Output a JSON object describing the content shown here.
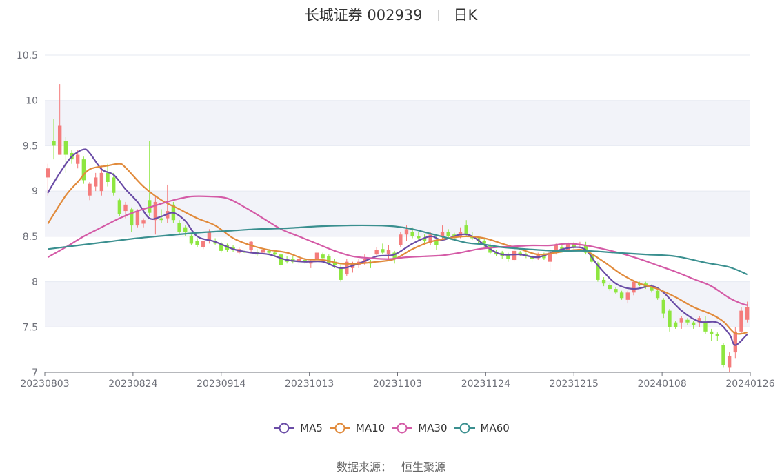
{
  "header": {
    "stock": "长城证券 002939",
    "period": "日K"
  },
  "source": {
    "label": "数据来源：",
    "value": "恒生聚源"
  },
  "chart_data": {
    "type": "candlestick",
    "title": "长城证券 002939 日K",
    "ylim": [
      7,
      10.5
    ],
    "yticks": [
      7,
      7.5,
      8,
      8.5,
      9,
      9.5,
      10,
      10.5
    ],
    "xtick_labels": [
      "20230803",
      "20230824",
      "20230914",
      "20231013",
      "20231103",
      "20231124",
      "20231215",
      "20240108",
      "20240126"
    ],
    "n_days": 118,
    "colors": {
      "up": "#f47c7c",
      "down": "#8ee640",
      "grid": "#e6e9f2",
      "band": "#f2f3f9",
      "axis": "#6e7079"
    },
    "candles": [
      [
        9.15,
        9.3,
        8.95,
        9.25
      ],
      [
        9.55,
        9.8,
        9.35,
        9.5
      ],
      [
        9.4,
        10.18,
        9.4,
        9.72
      ],
      [
        9.55,
        9.6,
        9.2,
        9.4
      ],
      [
        9.42,
        9.45,
        9.3,
        9.35
      ],
      [
        9.3,
        9.45,
        9.25,
        9.4
      ],
      [
        9.35,
        9.38,
        9.08,
        9.12
      ],
      [
        8.95,
        9.1,
        8.9,
        9.08
      ],
      [
        9.05,
        9.2,
        9.0,
        9.15
      ],
      [
        9.0,
        9.28,
        8.95,
        9.2
      ],
      [
        9.2,
        9.3,
        9.05,
        9.1
      ],
      [
        9.15,
        9.2,
        8.95,
        8.98
      ],
      [
        8.9,
        8.92,
        8.72,
        8.75
      ],
      [
        8.78,
        8.88,
        8.7,
        8.85
      ],
      [
        8.8,
        8.82,
        8.55,
        8.62
      ],
      [
        8.62,
        8.8,
        8.6,
        8.78
      ],
      [
        8.64,
        8.7,
        8.6,
        8.68
      ],
      [
        8.9,
        9.55,
        8.72,
        8.76
      ],
      [
        8.68,
        8.95,
        8.52,
        8.88
      ],
      [
        8.7,
        8.8,
        8.65,
        8.68
      ],
      [
        8.7,
        9.07,
        8.65,
        8.78
      ],
      [
        8.85,
        8.88,
        8.65,
        8.68
      ],
      [
        8.65,
        8.68,
        8.52,
        8.55
      ],
      [
        8.6,
        8.62,
        8.5,
        8.55
      ],
      [
        8.5,
        8.52,
        8.4,
        8.42
      ],
      [
        8.45,
        8.48,
        8.38,
        8.4
      ],
      [
        8.38,
        8.42,
        8.36,
        8.45
      ],
      [
        8.45,
        8.58,
        8.42,
        8.55
      ],
      [
        8.45,
        8.48,
        8.4,
        8.42
      ],
      [
        8.42,
        8.44,
        8.32,
        8.34
      ],
      [
        8.4,
        8.42,
        8.33,
        8.35
      ],
      [
        8.38,
        8.4,
        8.33,
        8.35
      ],
      [
        8.32,
        8.38,
        8.3,
        8.36
      ],
      [
        8.33,
        8.35,
        8.3,
        8.32
      ],
      [
        8.35,
        8.45,
        8.33,
        8.44
      ],
      [
        8.33,
        8.36,
        8.28,
        8.3
      ],
      [
        8.32,
        8.38,
        8.3,
        8.35
      ],
      [
        8.34,
        8.36,
        8.3,
        8.32
      ],
      [
        8.32,
        8.34,
        8.28,
        8.3
      ],
      [
        8.3,
        8.33,
        8.15,
        8.18
      ],
      [
        8.25,
        8.28,
        8.2,
        8.22
      ],
      [
        8.25,
        8.28,
        8.2,
        8.22
      ],
      [
        8.22,
        8.28,
        8.18,
        8.25
      ],
      [
        8.24,
        8.26,
        8.2,
        8.22
      ],
      [
        8.2,
        8.25,
        8.15,
        8.23
      ],
      [
        8.25,
        8.35,
        8.22,
        8.32
      ],
      [
        8.3,
        8.32,
        8.24,
        8.26
      ],
      [
        8.28,
        8.3,
        8.18,
        8.2
      ],
      [
        8.22,
        8.25,
        8.15,
        8.18
      ],
      [
        8.15,
        8.2,
        8.0,
        8.02
      ],
      [
        8.08,
        8.25,
        8.06,
        8.22
      ],
      [
        8.15,
        8.22,
        8.1,
        8.2
      ],
      [
        8.18,
        8.25,
        8.15,
        8.22
      ],
      [
        8.2,
        8.3,
        8.18,
        8.25
      ],
      [
        8.22,
        8.24,
        8.15,
        8.2
      ],
      [
        8.3,
        8.38,
        8.28,
        8.35
      ],
      [
        8.36,
        8.42,
        8.3,
        8.32
      ],
      [
        8.3,
        8.4,
        8.25,
        8.35
      ],
      [
        8.32,
        8.34,
        8.2,
        8.25
      ],
      [
        8.4,
        8.55,
        8.38,
        8.52
      ],
      [
        8.52,
        8.62,
        8.45,
        8.58
      ],
      [
        8.55,
        8.6,
        8.48,
        8.5
      ],
      [
        8.5,
        8.55,
        8.45,
        8.48
      ],
      [
        8.48,
        8.52,
        8.4,
        8.45
      ],
      [
        8.43,
        8.55,
        8.4,
        8.52
      ],
      [
        8.45,
        8.5,
        8.35,
        8.4
      ],
      [
        8.5,
        8.62,
        8.45,
        8.55
      ],
      [
        8.55,
        8.58,
        8.48,
        8.5
      ],
      [
        8.52,
        8.54,
        8.45,
        8.48
      ],
      [
        8.5,
        8.6,
        8.48,
        8.55
      ],
      [
        8.62,
        8.68,
        8.5,
        8.52
      ],
      [
        8.5,
        8.55,
        8.46,
        8.48
      ],
      [
        8.48,
        8.5,
        8.42,
        8.45
      ],
      [
        8.45,
        8.48,
        8.38,
        8.42
      ],
      [
        8.4,
        8.42,
        8.3,
        8.32
      ],
      [
        8.32,
        8.35,
        8.28,
        8.3
      ],
      [
        8.32,
        8.34,
        8.25,
        8.28
      ],
      [
        8.3,
        8.32,
        8.22,
        8.25
      ],
      [
        8.24,
        8.36,
        8.22,
        8.34
      ],
      [
        8.32,
        8.34,
        8.28,
        8.3
      ],
      [
        8.3,
        8.32,
        8.26,
        8.28
      ],
      [
        8.28,
        8.3,
        8.22,
        8.25
      ],
      [
        8.26,
        8.32,
        8.24,
        8.3
      ],
      [
        8.3,
        8.32,
        8.24,
        8.26
      ],
      [
        8.22,
        8.35,
        8.12,
        8.32
      ],
      [
        8.33,
        8.42,
        8.3,
        8.4
      ],
      [
        8.38,
        8.4,
        8.32,
        8.35
      ],
      [
        8.35,
        8.44,
        8.33,
        8.42
      ],
      [
        8.42,
        8.44,
        8.35,
        8.38
      ],
      [
        8.4,
        8.44,
        8.38,
        8.41
      ],
      [
        8.4,
        8.44,
        8.3,
        8.32
      ],
      [
        8.3,
        8.32,
        8.2,
        8.22
      ],
      [
        8.2,
        8.22,
        8.0,
        8.02
      ],
      [
        8.02,
        8.05,
        7.95,
        7.98
      ],
      [
        7.96,
        7.98,
        7.9,
        7.92
      ],
      [
        7.92,
        7.94,
        7.86,
        7.88
      ],
      [
        7.88,
        7.9,
        7.8,
        7.82
      ],
      [
        7.8,
        7.9,
        7.76,
        7.88
      ],
      [
        7.88,
        8.02,
        7.85,
        8.0
      ],
      [
        7.98,
        8.0,
        7.95,
        7.96
      ],
      [
        7.98,
        8.0,
        7.92,
        7.94
      ],
      [
        7.95,
        7.97,
        7.88,
        7.9
      ],
      [
        7.9,
        7.92,
        7.8,
        7.82
      ],
      [
        7.8,
        7.82,
        7.6,
        7.65
      ],
      [
        7.68,
        7.7,
        7.45,
        7.5
      ],
      [
        7.55,
        7.57,
        7.48,
        7.5
      ],
      [
        7.55,
        7.62,
        7.48,
        7.6
      ],
      [
        7.58,
        7.6,
        7.52,
        7.55
      ],
      [
        7.55,
        7.57,
        7.48,
        7.52
      ],
      [
        7.55,
        7.62,
        7.5,
        7.6
      ],
      [
        7.56,
        7.62,
        7.42,
        7.45
      ],
      [
        7.45,
        7.48,
        7.35,
        7.42
      ],
      [
        7.42,
        7.44,
        7.35,
        7.4
      ],
      [
        7.3,
        7.32,
        7.05,
        7.08
      ],
      [
        7.05,
        7.22,
        7.0,
        7.18
      ],
      [
        7.22,
        7.5,
        7.15,
        7.45
      ],
      [
        7.45,
        7.72,
        7.42,
        7.68
      ],
      [
        7.58,
        7.78,
        7.55,
        7.72
      ]
    ],
    "ma": [
      {
        "name": "MA5",
        "color": "#6a4ca6",
        "anchors": [
          [
            0,
            8.98
          ],
          [
            2,
            9.2
          ],
          [
            4,
            9.38
          ],
          [
            6,
            9.46
          ],
          [
            7,
            9.42
          ],
          [
            9,
            9.24
          ],
          [
            11,
            9.18
          ],
          [
            13,
            9.02
          ],
          [
            15,
            8.88
          ],
          [
            17,
            8.7
          ],
          [
            19,
            8.72
          ],
          [
            21,
            8.76
          ],
          [
            23,
            8.67
          ],
          [
            25,
            8.5
          ],
          [
            28,
            8.44
          ],
          [
            31,
            8.36
          ],
          [
            34,
            8.32
          ],
          [
            37,
            8.3
          ],
          [
            40,
            8.24
          ],
          [
            43,
            8.22
          ],
          [
            46,
            8.22
          ],
          [
            49,
            8.15
          ],
          [
            52,
            8.2
          ],
          [
            55,
            8.28
          ],
          [
            58,
            8.3
          ],
          [
            61,
            8.42
          ],
          [
            64,
            8.5
          ],
          [
            66,
            8.46
          ],
          [
            69,
            8.52
          ],
          [
            71,
            8.5
          ],
          [
            74,
            8.36
          ],
          [
            76,
            8.3
          ],
          [
            79,
            8.3
          ],
          [
            82,
            8.27
          ],
          [
            85,
            8.34
          ],
          [
            88,
            8.38
          ],
          [
            90,
            8.35
          ],
          [
            92,
            8.18
          ],
          [
            95,
            7.98
          ],
          [
            98,
            7.92
          ],
          [
            101,
            7.95
          ],
          [
            103,
            7.88
          ],
          [
            106,
            7.68
          ],
          [
            109,
            7.56
          ],
          [
            112,
            7.55
          ],
          [
            114,
            7.42
          ],
          [
            115,
            7.3
          ],
          [
            117,
            7.42
          ]
        ]
      },
      {
        "name": "MA10",
        "color": "#e18a3b",
        "anchors": [
          [
            0,
            8.64
          ],
          [
            3,
            8.95
          ],
          [
            5,
            9.1
          ],
          [
            7,
            9.24
          ],
          [
            10,
            9.28
          ],
          [
            12,
            9.3
          ],
          [
            13,
            9.26
          ],
          [
            16,
            9.05
          ],
          [
            19,
            8.9
          ],
          [
            22,
            8.8
          ],
          [
            25,
            8.7
          ],
          [
            28,
            8.62
          ],
          [
            31,
            8.48
          ],
          [
            34,
            8.4
          ],
          [
            37,
            8.35
          ],
          [
            40,
            8.32
          ],
          [
            43,
            8.25
          ],
          [
            46,
            8.24
          ],
          [
            49,
            8.2
          ],
          [
            52,
            8.2
          ],
          [
            55,
            8.22
          ],
          [
            58,
            8.25
          ],
          [
            61,
            8.36
          ],
          [
            64,
            8.44
          ],
          [
            67,
            8.48
          ],
          [
            70,
            8.5
          ],
          [
            73,
            8.48
          ],
          [
            76,
            8.42
          ],
          [
            79,
            8.36
          ],
          [
            82,
            8.3
          ],
          [
            85,
            8.32
          ],
          [
            88,
            8.35
          ],
          [
            90,
            8.34
          ],
          [
            93,
            8.22
          ],
          [
            96,
            8.08
          ],
          [
            99,
            7.98
          ],
          [
            102,
            7.92
          ],
          [
            105,
            7.83
          ],
          [
            108,
            7.72
          ],
          [
            111,
            7.64
          ],
          [
            113,
            7.56
          ],
          [
            115,
            7.43
          ],
          [
            117,
            7.44
          ]
        ]
      },
      {
        "name": "MA30",
        "color": "#d45aa6",
        "anchors": [
          [
            0,
            8.27
          ],
          [
            3,
            8.38
          ],
          [
            6,
            8.5
          ],
          [
            9,
            8.6
          ],
          [
            12,
            8.7
          ],
          [
            15,
            8.78
          ],
          [
            18,
            8.84
          ],
          [
            21,
            8.9
          ],
          [
            24,
            8.94
          ],
          [
            27,
            8.94
          ],
          [
            30,
            8.92
          ],
          [
            33,
            8.82
          ],
          [
            36,
            8.7
          ],
          [
            39,
            8.58
          ],
          [
            42,
            8.5
          ],
          [
            45,
            8.42
          ],
          [
            48,
            8.34
          ],
          [
            51,
            8.28
          ],
          [
            54,
            8.26
          ],
          [
            57,
            8.25
          ],
          [
            60,
            8.27
          ],
          [
            63,
            8.28
          ],
          [
            66,
            8.29
          ],
          [
            69,
            8.32
          ],
          [
            72,
            8.36
          ],
          [
            75,
            8.38
          ],
          [
            78,
            8.39
          ],
          [
            81,
            8.4
          ],
          [
            84,
            8.4
          ],
          [
            87,
            8.42
          ],
          [
            90,
            8.4
          ],
          [
            93,
            8.36
          ],
          [
            96,
            8.31
          ],
          [
            99,
            8.25
          ],
          [
            102,
            8.18
          ],
          [
            105,
            8.11
          ],
          [
            108,
            8.03
          ],
          [
            111,
            7.95
          ],
          [
            114,
            7.82
          ],
          [
            116,
            7.76
          ],
          [
            117,
            7.74
          ]
        ]
      },
      {
        "name": "MA60",
        "color": "#3a8f8f",
        "anchors": [
          [
            0,
            8.36
          ],
          [
            5,
            8.4
          ],
          [
            10,
            8.44
          ],
          [
            15,
            8.48
          ],
          [
            20,
            8.51
          ],
          [
            25,
            8.54
          ],
          [
            30,
            8.56
          ],
          [
            35,
            8.58
          ],
          [
            40,
            8.59
          ],
          [
            45,
            8.61
          ],
          [
            50,
            8.62
          ],
          [
            55,
            8.62
          ],
          [
            58,
            8.61
          ],
          [
            61,
            8.58
          ],
          [
            64,
            8.53
          ],
          [
            67,
            8.48
          ],
          [
            70,
            8.43
          ],
          [
            73,
            8.41
          ],
          [
            76,
            8.38
          ],
          [
            80,
            8.36
          ],
          [
            85,
            8.34
          ],
          [
            90,
            8.34
          ],
          [
            95,
            8.32
          ],
          [
            100,
            8.3
          ],
          [
            105,
            8.28
          ],
          [
            110,
            8.21
          ],
          [
            114,
            8.16
          ],
          [
            117,
            8.08
          ]
        ]
      }
    ]
  }
}
